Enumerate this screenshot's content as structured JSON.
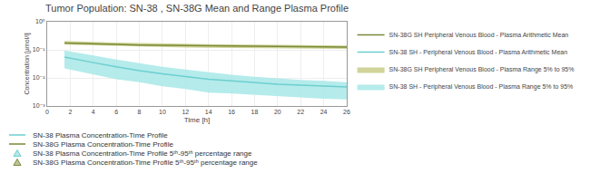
{
  "chart_data": {
    "type": "line",
    "title": "Tumor Population: SN-38 , SN-38G Mean and Range Plasma Profile",
    "xlabel": "Time [h]",
    "ylabel": "Concentration [µmol/l]",
    "x": [
      1.5,
      2,
      4,
      6,
      8,
      10,
      12,
      14,
      16,
      18,
      20,
      22,
      24,
      26
    ],
    "series": [
      {
        "name": "SN-38 SH - Peripheral Venous Blood - Plasma Range 5% to 95%",
        "type": "band",
        "color": "#A8E8E8",
        "low": [
          0.022,
          0.02,
          0.013,
          0.009,
          0.007,
          0.005,
          0.004,
          0.003,
          0.0028,
          0.0025,
          0.0022,
          0.002,
          0.0018,
          0.0017
        ],
        "high": [
          0.095,
          0.088,
          0.063,
          0.045,
          0.033,
          0.025,
          0.02,
          0.016,
          0.013,
          0.011,
          0.0095,
          0.0085,
          0.0078,
          0.007
        ]
      },
      {
        "name": "SN-38 SH - Peripheral Venous Blood - Plasma Arithmetic Mean",
        "type": "line",
        "color": "#6DCFCF",
        "values": [
          0.055,
          0.05,
          0.035,
          0.025,
          0.018,
          0.014,
          0.011,
          0.009,
          0.0078,
          0.0068,
          0.006,
          0.0055,
          0.005,
          0.0048
        ]
      },
      {
        "name": "SN-38G SH Peripheral Venous Blood - Plasma Range 5% to 95%",
        "type": "band",
        "color": "#C8CC88",
        "low": [
          0.152,
          0.15,
          0.142,
          0.135,
          0.129,
          0.124,
          0.121,
          0.118,
          0.116,
          0.114,
          0.112,
          0.11,
          0.109,
          0.107
        ],
        "high": [
          0.205,
          0.2,
          0.19,
          0.18,
          0.172,
          0.166,
          0.162,
          0.158,
          0.155,
          0.152,
          0.149,
          0.147,
          0.145,
          0.143
        ]
      },
      {
        "name": "SN-38G SH Peripheral Venous Blood - Plasma Arithmetic Mean",
        "type": "line",
        "color": "#7A8A3A",
        "values": [
          0.175,
          0.172,
          0.163,
          0.155,
          0.149,
          0.144,
          0.141,
          0.138,
          0.136,
          0.134,
          0.132,
          0.13,
          0.128,
          0.126
        ]
      }
    ],
    "log": "y",
    "xlim": [
      0,
      26
    ],
    "xticks": [
      0,
      2,
      4,
      6,
      8,
      10,
      12,
      14,
      16,
      18,
      20,
      22,
      24,
      26
    ],
    "ylim": [
      0.001,
      1.0
    ],
    "yticks": [
      {
        "value": 0.001,
        "label": "10⁻³"
      },
      {
        "value": 0.01,
        "label": "10⁻²"
      },
      {
        "value": 0.1,
        "label": "10⁻¹"
      },
      {
        "value": 1,
        "label": "10⁰"
      }
    ],
    "grid": true,
    "legend": "right",
    "annotations": [
      {
        "text": "SN-38 Plasma Concentration-Time Profile",
        "line_style": "solid",
        "color": "#6DCFCF"
      },
      {
        "text": "SN-38G Plasma Concentration-Time Profile",
        "line_style": "solid",
        "color": "#7A8A3A"
      },
      {
        "text": "SN-38 Plasma Concentration-Time Profile 5ᵗʰ-95ᵗʰ percentage range",
        "marker": "triangle-up",
        "color": "#6DCFCF"
      },
      {
        "text": "SN-38G Plasma Concentration-Time Profile 5ᵗʰ-95ᵗʰ percentage range",
        "marker": "triangle-up",
        "color": "#7A8A3A"
      }
    ]
  }
}
